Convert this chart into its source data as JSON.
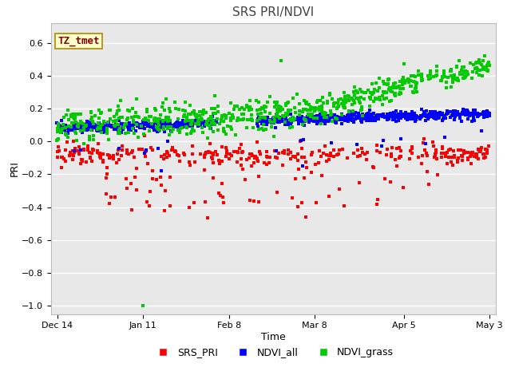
{
  "title": "SRS PRI/NDVI",
  "xlabel": "Time",
  "ylabel": "PRI",
  "ylim": [
    -1.05,
    0.72
  ],
  "yticks": [
    -1.0,
    -0.8,
    -0.6,
    -0.4,
    -0.2,
    0.0,
    0.2,
    0.4,
    0.6
  ],
  "bg_color": "#e8e8e8",
  "annotation_text": "TZ_tmet",
  "annotation_color": "#8b0000",
  "annotation_bg": "#ffffcc",
  "legend_labels": [
    "SRS_PRI",
    "NDVI_all",
    "NDVI_grass"
  ],
  "legend_colors": [
    "#ff0000",
    "#0000ff",
    "#00cc00"
  ],
  "marker_size": 3.5,
  "seed": 42,
  "xtick_labels": [
    "Dec 14",
    "Jan 11",
    "Feb 8",
    "Mar 8",
    "Apr 5",
    "May 3"
  ],
  "xtick_days": [
    0,
    28,
    56,
    84,
    113,
    141
  ]
}
